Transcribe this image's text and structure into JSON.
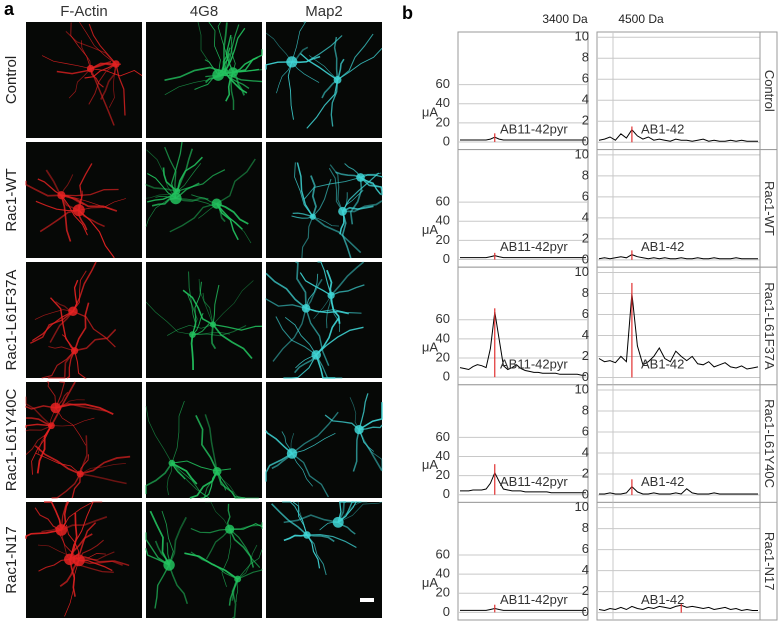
{
  "panel_a": {
    "label": "a",
    "columns": [
      "F-Actin",
      "4G8",
      "Map2"
    ],
    "rows": [
      "Control",
      "Rac1-WT",
      "Rac1-L61F37A",
      "Rac1-L61Y40C",
      "Rac1-N17"
    ]
  },
  "panel_b": {
    "label": "b",
    "mass_labels": [
      "3400 Da",
      "4500 Da"
    ]
  },
  "chart_data": [
    {
      "type": "line",
      "ylabel": "μA",
      "annotation": "AB11-42pyr",
      "ylim": [
        -8,
        115
      ],
      "yticks": [
        0,
        20,
        40,
        60
      ],
      "grid": true,
      "color": "#000000",
      "values": [
        2,
        2,
        2,
        2,
        2,
        2,
        2,
        3,
        5,
        3,
        2,
        2,
        2,
        2,
        2,
        2,
        2,
        2,
        2,
        2,
        2,
        2,
        2,
        2,
        2,
        2,
        2,
        2,
        2,
        2
      ],
      "marker": {
        "value": 9,
        "color": "#e03030"
      }
    },
    {
      "type": "line",
      "title": "Control",
      "annotation": "AB1-42",
      "ylim": [
        -0.7,
        10.5
      ],
      "yticks": [
        0,
        2,
        4,
        6,
        8,
        10
      ],
      "grid": true,
      "color": "#000000",
      "values": [
        0.2,
        0.3,
        0.5,
        0.2,
        0.8,
        0.4,
        1.2,
        0.6,
        0.3,
        0.5,
        0.2,
        0.3,
        0.2,
        0.1,
        0.3,
        0.2,
        0.2,
        0.1,
        0.2,
        0.3,
        0.1,
        0.2,
        0.1,
        0.1,
        0.2,
        0.1,
        0.2,
        0.1,
        0.1,
        0.1
      ],
      "marker": {
        "value": 1.5,
        "color": "#e03030"
      }
    },
    {
      "type": "line",
      "ylabel": "μA",
      "annotation": "AB11-42pyr",
      "ylim": [
        -8,
        115
      ],
      "yticks": [
        0,
        20,
        40,
        60
      ],
      "grid": true,
      "color": "#000000",
      "values": [
        2,
        2,
        2,
        2,
        2,
        2,
        2,
        3,
        4,
        3,
        2,
        2,
        2,
        2,
        2,
        2,
        2,
        2,
        2,
        2,
        2,
        2,
        2,
        2,
        2,
        2,
        2,
        2,
        2,
        2
      ],
      "marker": {
        "value": 7,
        "color": "#e03030"
      }
    },
    {
      "type": "line",
      "title": "Rac1-WT",
      "annotation": "AB1-42",
      "ylim": [
        -0.7,
        10.5
      ],
      "yticks": [
        0,
        2,
        4,
        6,
        8,
        10
      ],
      "grid": true,
      "color": "#000000",
      "values": [
        0.1,
        0.2,
        0.1,
        0.2,
        0.3,
        0.2,
        0.5,
        0.3,
        0.2,
        0.1,
        0.2,
        0.1,
        0.2,
        0.1,
        0.1,
        0.2,
        0.1,
        0.1,
        0.2,
        0.1,
        0.1,
        0.2,
        0.1,
        0.1,
        0.1,
        0.2,
        0.1,
        0.1,
        0.1,
        0.1
      ],
      "marker": {
        "value": 0.9,
        "color": "#e03030"
      }
    },
    {
      "type": "line",
      "ylabel": "μA",
      "annotation": "AB11-42pyr",
      "ylim": [
        -8,
        115
      ],
      "yticks": [
        0,
        20,
        40,
        60
      ],
      "grid": true,
      "color": "#000000",
      "values": [
        10,
        9,
        8,
        11,
        13,
        12,
        10,
        30,
        68,
        40,
        12,
        8,
        10,
        13,
        9,
        7,
        6,
        5,
        5,
        4,
        4,
        4,
        4,
        3,
        3,
        3,
        3,
        3,
        2,
        2
      ],
      "marker": {
        "value": 72,
        "color": "#e03030"
      }
    },
    {
      "type": "line",
      "title": "Rac1-L61F37A",
      "annotation": "AB1-42",
      "ylim": [
        -0.7,
        10.5
      ],
      "yticks": [
        0,
        2,
        4,
        6,
        8,
        10
      ],
      "grid": true,
      "color": "#000000",
      "values": [
        1.8,
        1.5,
        1.6,
        1.4,
        2,
        1.5,
        8,
        3,
        1.2,
        1.5,
        2,
        2.8,
        1.8,
        1.5,
        2.5,
        2,
        1.6,
        2,
        1.3,
        1.2,
        1.5,
        1,
        1.2,
        1.4,
        1,
        0.9,
        1.1,
        0.8,
        0.9,
        1
      ],
      "marker": {
        "value": 9,
        "color": "#e03030"
      }
    },
    {
      "type": "line",
      "ylabel": "μA",
      "annotation": "AB11-42pyr",
      "ylim": [
        -8,
        115
      ],
      "yticks": [
        0,
        20,
        40,
        60
      ],
      "grid": true,
      "color": "#000000",
      "values": [
        4,
        4,
        4,
        5,
        5,
        5,
        6,
        12,
        23,
        14,
        6,
        5,
        4,
        4,
        4,
        3,
        3,
        3,
        3,
        3,
        3,
        2,
        2,
        2,
        2,
        2,
        2,
        2,
        2,
        2
      ],
      "marker": {
        "value": 32,
        "color": "#e03030"
      }
    },
    {
      "type": "line",
      "title": "Rac1-L61Y40C",
      "annotation": "AB1-42",
      "ylim": [
        -0.7,
        10.5
      ],
      "yticks": [
        0,
        2,
        4,
        6,
        8,
        10
      ],
      "grid": true,
      "color": "#000000",
      "values": [
        0.1,
        0.1,
        0.2,
        0.1,
        0.1,
        0.2,
        0.8,
        0.3,
        0.1,
        0.1,
        0.2,
        0.1,
        0.1,
        0.1,
        0.2,
        0.1,
        0.6,
        0.2,
        0.1,
        0.1,
        0.1,
        0.2,
        0.1,
        0.1,
        0.1,
        0.1,
        0.1,
        0.1,
        0.1,
        0.1
      ],
      "marker": {
        "value": 1.5,
        "color": "#e03030"
      }
    },
    {
      "type": "line",
      "ylabel": "μA",
      "annotation": "AB11-42pyr",
      "ylim": [
        -8,
        115
      ],
      "yticks": [
        0,
        20,
        40,
        60
      ],
      "grid": true,
      "color": "#000000",
      "values": [
        2,
        2,
        2,
        2,
        2,
        2,
        2,
        3,
        4,
        3,
        2,
        2,
        2,
        2,
        2,
        2,
        2,
        2,
        2,
        2,
        2,
        2,
        2,
        2,
        2,
        2,
        2,
        2,
        2,
        2
      ],
      "marker": {
        "value": 8,
        "color": "#e03030"
      }
    },
    {
      "type": "line",
      "title": "Rac1-N17",
      "annotation": "AB1-42",
      "ylim": [
        -0.7,
        10.5
      ],
      "yticks": [
        0,
        2,
        4,
        6,
        8,
        10
      ],
      "grid": true,
      "color": "#000000",
      "values": [
        0.3,
        0.2,
        0.4,
        0.3,
        0.5,
        0.3,
        0.6,
        0.4,
        0.3,
        0.5,
        0.4,
        0.6,
        0.5,
        0.4,
        0.6,
        0.7,
        0.5,
        0.6,
        0.5,
        0.4,
        0.5,
        0.3,
        0.4,
        0.5,
        0.3,
        0.4,
        0.2,
        0.3,
        0.2,
        0.2
      ],
      "marker": {
        "value": 0.9,
        "color": "#e03030"
      }
    }
  ]
}
